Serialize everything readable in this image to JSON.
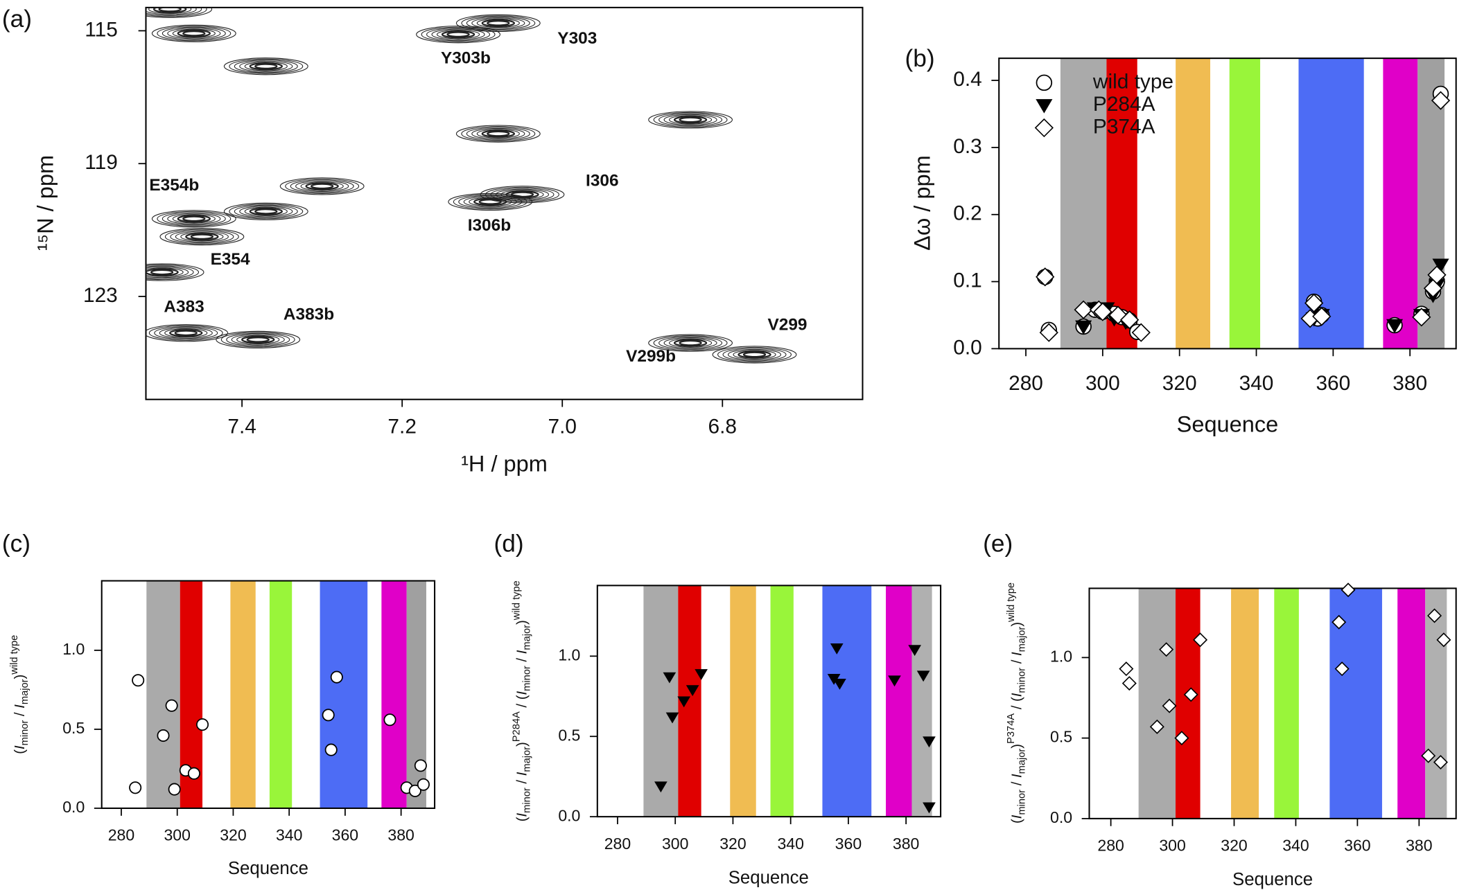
{
  "chart_data": [
    {
      "type": "contour",
      "title": "(a)",
      "xlabel": "¹H / ppm",
      "ylabel": "¹⁵N / ppm",
      "xlim": [
        7.52,
        6.625
      ],
      "ylim": [
        126.1,
        114.3
      ],
      "xticks": [
        7.4,
        7.2,
        {
          "value": 7,
          "label": "7.0"
        },
        6.8
      ],
      "yticks": [
        115,
        119,
        123
      ],
      "color": "#222222",
      "peaks": [
        {
          "x": 7.08,
          "y": 114.77,
          "label": "Y303"
        },
        {
          "x": 7.13,
          "y": 115.11,
          "label": "Y303b"
        },
        {
          "x": 7.46,
          "y": 115.08,
          "label": null
        },
        {
          "x": 7.49,
          "y": 114.35,
          "label": null
        },
        {
          "x": 7.37,
          "y": 116.07,
          "label": null
        },
        {
          "x": 6.84,
          "y": 117.68,
          "label": null
        },
        {
          "x": 7.08,
          "y": 118.1,
          "label": null
        },
        {
          "x": 7.05,
          "y": 119.93,
          "label": "I306"
        },
        {
          "x": 7.09,
          "y": 120.15,
          "label": "I306b"
        },
        {
          "x": 7.3,
          "y": 119.68,
          "label": null
        },
        {
          "x": 7.37,
          "y": 120.44,
          "label": null
        },
        {
          "x": 7.46,
          "y": 120.66,
          "label": "E354b"
        },
        {
          "x": 7.45,
          "y": 121.2,
          "label": "E354"
        },
        {
          "x": 7.5,
          "y": 122.27,
          "label": null
        },
        {
          "x": 7.47,
          "y": 124.1,
          "label": "A383"
        },
        {
          "x": 7.38,
          "y": 124.3,
          "label": "A383b"
        },
        {
          "x": 6.76,
          "y": 124.75,
          "label": "V299"
        },
        {
          "x": 6.84,
          "y": 124.4,
          "label": "V299b"
        }
      ]
    },
    {
      "type": "scatter",
      "title": "(b)",
      "xlabel": "Sequence",
      "ylabel": [
        {
          "text": "Δω / ppm",
          "pos": "base",
          "italic": false
        }
      ],
      "xlim": [
        273,
        392
      ],
      "ylim": [
        0,
        0.433
      ],
      "xticks": [
        280,
        300,
        320,
        340,
        360,
        380
      ],
      "yticks": [
        {
          "value": 0,
          "label": "0.0"
        },
        0.1,
        0.2,
        0.3,
        0.4
      ],
      "legend": "upper left",
      "regions": [
        {
          "from": 289,
          "to": 301,
          "color": "#aaaaaa"
        },
        {
          "from": 301,
          "to": 309,
          "color": "#e00000"
        },
        {
          "from": 319,
          "to": 328,
          "color": "#f0bc52"
        },
        {
          "from": 333,
          "to": 341,
          "color": "#99f53a"
        },
        {
          "from": 351,
          "to": 368,
          "color": "#4d6cf5"
        },
        {
          "from": 373,
          "to": 382,
          "color": "#e000c8"
        },
        {
          "from": 382,
          "to": 389,
          "color": "#a0a0a0"
        }
      ],
      "series": [
        {
          "name": "wild type",
          "marker": "circle",
          "color": "#ffffff",
          "x": [
            285,
            286,
            295,
            298,
            300,
            303,
            305,
            307,
            309,
            355,
            356,
            357,
            376,
            383,
            386,
            387,
            388
          ],
          "values": [
            0.107,
            0.028,
            0.033,
            0.058,
            0.055,
            0.052,
            0.047,
            0.042,
            0.025,
            0.07,
            0.045,
            0.05,
            0.035,
            0.052,
            0.085,
            0.1,
            0.38
          ]
        },
        {
          "name": "P284A",
          "marker": "triangle",
          "color": "#000000",
          "x": [
            295,
            298,
            301,
            303,
            306,
            355,
            357,
            376,
            383,
            386,
            387,
            388
          ],
          "values": [
            0.033,
            0.06,
            0.06,
            0.045,
            0.04,
            0.045,
            0.05,
            0.035,
            0.05,
            0.08,
            0.095,
            0.125
          ]
        },
        {
          "name": "P374A",
          "marker": "diamond",
          "color": "#ffffff",
          "x": [
            285,
            286,
            295,
            299,
            300,
            304,
            307,
            310,
            355,
            354,
            357,
            383,
            386,
            387,
            388
          ],
          "values": [
            0.107,
            0.024,
            0.058,
            0.058,
            0.055,
            0.05,
            0.043,
            0.024,
            0.068,
            0.045,
            0.048,
            0.047,
            0.09,
            0.11,
            0.37
          ]
        }
      ]
    },
    {
      "type": "scatter",
      "title": "(c)",
      "xlabel": "Sequence",
      "ylabel": [
        {
          "text": "(",
          "pos": "base",
          "italic": false
        },
        {
          "text": "I",
          "pos": "base",
          "italic": true
        },
        {
          "text": "minor",
          "pos": "sub",
          "italic": false
        },
        {
          "text": " / ",
          "pos": "base",
          "italic": false
        },
        {
          "text": "I",
          "pos": "base",
          "italic": true
        },
        {
          "text": "major",
          "pos": "sub",
          "italic": false
        },
        {
          "text": ")",
          "pos": "base",
          "italic": false
        },
        {
          "text": "wild type",
          "pos": "sup",
          "italic": false
        }
      ],
      "xlim": [
        273,
        392
      ],
      "ylim": [
        0,
        1.44
      ],
      "xticks": [
        280,
        300,
        320,
        340,
        360,
        380
      ],
      "yticks": [
        {
          "value": 0,
          "label": "0.0"
        },
        0.5,
        {
          "value": 1,
          "label": "1.0"
        }
      ],
      "regions": [
        {
          "from": 289,
          "to": 301,
          "color": "#aaaaaa"
        },
        {
          "from": 301,
          "to": 309,
          "color": "#e00000"
        },
        {
          "from": 319,
          "to": 328,
          "color": "#f0bc52"
        },
        {
          "from": 333,
          "to": 341,
          "color": "#99f53a"
        },
        {
          "from": 351,
          "to": 368,
          "color": "#4d6cf5"
        },
        {
          "from": 373,
          "to": 382,
          "color": "#e000c8"
        },
        {
          "from": 382,
          "to": 389,
          "color": "#a0a0a0"
        }
      ],
      "marker": "circle",
      "color": "#ffffff",
      "x": [
        285,
        286,
        295,
        298,
        299,
        303,
        306,
        309,
        354,
        355,
        357,
        376,
        382,
        385,
        387,
        388
      ],
      "values": [
        0.13,
        0.81,
        0.46,
        0.65,
        0.12,
        0.24,
        0.22,
        0.53,
        0.59,
        0.37,
        0.83,
        0.56,
        0.13,
        0.11,
        0.27,
        0.15
      ]
    },
    {
      "type": "scatter",
      "title": "(d)",
      "xlabel": "Sequence",
      "ylabel": [
        {
          "text": "(",
          "pos": "base",
          "italic": false
        },
        {
          "text": "I",
          "pos": "base",
          "italic": true
        },
        {
          "text": "minor",
          "pos": "sub",
          "italic": false
        },
        {
          "text": " / ",
          "pos": "base",
          "italic": false
        },
        {
          "text": "I",
          "pos": "base",
          "italic": true
        },
        {
          "text": "major",
          "pos": "sub",
          "italic": false
        },
        {
          "text": ")",
          "pos": "base",
          "italic": false
        },
        {
          "text": "P284A",
          "pos": "sup",
          "italic": false
        },
        {
          "text": " / (",
          "pos": "base",
          "italic": false
        },
        {
          "text": "I",
          "pos": "base",
          "italic": true
        },
        {
          "text": "minor",
          "pos": "sub",
          "italic": false
        },
        {
          "text": " / ",
          "pos": "base",
          "italic": false
        },
        {
          "text": "I",
          "pos": "base",
          "italic": true
        },
        {
          "text": "major",
          "pos": "sub",
          "italic": false
        },
        {
          "text": ")",
          "pos": "base",
          "italic": false
        },
        {
          "text": "wild type",
          "pos": "sup",
          "italic": false
        }
      ],
      "xlim": [
        273,
        392
      ],
      "ylim": [
        0,
        1.44
      ],
      "xticks": [
        280,
        300,
        320,
        340,
        360,
        380
      ],
      "yticks": [
        {
          "value": 0,
          "label": "0.0"
        },
        0.5,
        {
          "value": 1,
          "label": "1.0"
        }
      ],
      "regions": [
        {
          "from": 289,
          "to": 301,
          "color": "#aaaaaa"
        },
        {
          "from": 301,
          "to": 309,
          "color": "#e00000"
        },
        {
          "from": 319,
          "to": 328,
          "color": "#f0bc52"
        },
        {
          "from": 333,
          "to": 341,
          "color": "#99f53a"
        },
        {
          "from": 351,
          "to": 368,
          "color": "#4d6cf5"
        },
        {
          "from": 373,
          "to": 382,
          "color": "#e000c8"
        },
        {
          "from": 382,
          "to": 389,
          "color": "#b0b0b0"
        }
      ],
      "marker": "triangle",
      "color": "#000000",
      "x": [
        295,
        298,
        299,
        303,
        306,
        309,
        355,
        356,
        357,
        376,
        383,
        386,
        388,
        388
      ],
      "values": [
        0.19,
        0.87,
        0.62,
        0.72,
        0.79,
        0.89,
        0.86,
        1.05,
        0.83,
        0.85,
        1.04,
        0.88,
        0.47,
        0.06
      ]
    },
    {
      "type": "scatter",
      "title": "(e)",
      "xlabel": "Sequence",
      "ylabel": [
        {
          "text": "(",
          "pos": "base",
          "italic": false
        },
        {
          "text": "I",
          "pos": "base",
          "italic": true
        },
        {
          "text": "minor",
          "pos": "sub",
          "italic": false
        },
        {
          "text": " / ",
          "pos": "base",
          "italic": false
        },
        {
          "text": "I",
          "pos": "base",
          "italic": true
        },
        {
          "text": "major",
          "pos": "sub",
          "italic": false
        },
        {
          "text": ")",
          "pos": "base",
          "italic": false
        },
        {
          "text": "P374A",
          "pos": "sup",
          "italic": false
        },
        {
          "text": " / (",
          "pos": "base",
          "italic": false
        },
        {
          "text": "I",
          "pos": "base",
          "italic": true
        },
        {
          "text": "minor",
          "pos": "sub",
          "italic": false
        },
        {
          "text": " / ",
          "pos": "base",
          "italic": false
        },
        {
          "text": "I",
          "pos": "base",
          "italic": true
        },
        {
          "text": "major",
          "pos": "sub",
          "italic": false
        },
        {
          "text": ")",
          "pos": "base",
          "italic": false
        },
        {
          "text": "wild type",
          "pos": "sup",
          "italic": false
        }
      ],
      "xlim": [
        273,
        392
      ],
      "ylim": [
        0,
        1.43
      ],
      "xticks": [
        280,
        300,
        320,
        340,
        360,
        380
      ],
      "yticks": [
        {
          "value": 0,
          "label": "0.0"
        },
        0.5,
        {
          "value": 1,
          "label": "1.0"
        }
      ],
      "regions": [
        {
          "from": 289,
          "to": 301,
          "color": "#aaaaaa"
        },
        {
          "from": 301,
          "to": 309,
          "color": "#e00000"
        },
        {
          "from": 319,
          "to": 328,
          "color": "#f0bc52"
        },
        {
          "from": 333,
          "to": 341,
          "color": "#99f53a"
        },
        {
          "from": 351,
          "to": 368,
          "color": "#4d6cf5"
        },
        {
          "from": 373,
          "to": 382,
          "color": "#e000c8"
        },
        {
          "from": 382,
          "to": 389,
          "color": "#b0b0b0"
        }
      ],
      "marker": "diamond",
      "color": "#ffffff",
      "x": [
        285,
        286,
        295,
        298,
        299,
        303,
        306,
        309,
        354,
        355,
        357,
        383,
        385,
        387,
        388
      ],
      "values": [
        0.93,
        0.84,
        0.57,
        1.05,
        0.7,
        0.5,
        0.77,
        1.11,
        1.22,
        0.93,
        1.42,
        0.39,
        1.26,
        0.35,
        1.11
      ]
    }
  ]
}
